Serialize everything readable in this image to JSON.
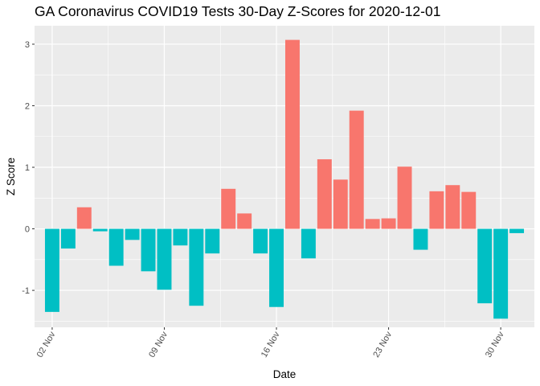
{
  "chart_data": {
    "type": "bar",
    "title": "GA Coronavirus COVID19 Tests 30-Day Z-Scores for 2020-12-01",
    "xlabel": "Date",
    "ylabel": "Z Score",
    "x_tick_labels": [
      "02 Nov",
      "09 Nov",
      "16 Nov",
      "23 Nov",
      "30 Nov"
    ],
    "y_ticks": [
      -1,
      0,
      1,
      2,
      3
    ],
    "ylim": [
      -1.6,
      3.3
    ],
    "grid": true,
    "legend": "none",
    "colors": {
      "positive": "#F8766D",
      "negative": "#00BFC4",
      "panel": "#EBEBEB",
      "grid": "#FFFFFF"
    },
    "categories": [
      "2020-11-02",
      "2020-11-03",
      "2020-11-04",
      "2020-11-05",
      "2020-11-06",
      "2020-11-07",
      "2020-11-08",
      "2020-11-09",
      "2020-11-10",
      "2020-11-11",
      "2020-11-12",
      "2020-11-13",
      "2020-11-14",
      "2020-11-15",
      "2020-11-16",
      "2020-11-17",
      "2020-11-18",
      "2020-11-19",
      "2020-11-20",
      "2020-11-21",
      "2020-11-22",
      "2020-11-23",
      "2020-11-24",
      "2020-11-25",
      "2020-11-26",
      "2020-11-27",
      "2020-11-28",
      "2020-11-29",
      "2020-11-30",
      "2020-12-01"
    ],
    "values": [
      -1.35,
      -0.32,
      0.35,
      -0.04,
      -0.6,
      -0.18,
      -0.69,
      -0.99,
      -0.27,
      -1.25,
      -0.4,
      0.65,
      0.25,
      -0.4,
      -1.27,
      3.07,
      -0.48,
      1.13,
      0.8,
      1.92,
      0.16,
      0.17,
      1.01,
      -0.34,
      0.61,
      0.71,
      0.6,
      -1.21,
      -1.46,
      -0.07
    ]
  }
}
